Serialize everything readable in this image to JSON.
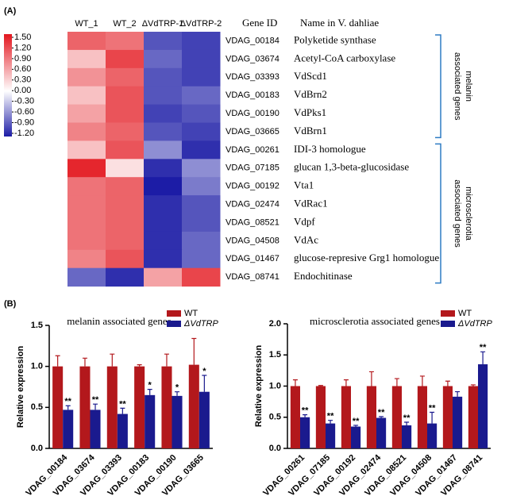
{
  "chart_data": [
    {
      "type": "heatmap",
      "panel_label": "(A)",
      "columns": [
        "WT_1",
        "WT_2",
        "ΔVdTRP-1",
        "ΔVdTRP-2"
      ],
      "id_header": "Gene ID",
      "name_header": "Name in V. dahliae",
      "zlim": [
        -1.2,
        1.5
      ],
      "zticks": [
        {
          "value": 1.5,
          "label": "1.50"
        },
        {
          "value": 1.2,
          "label": "1.20"
        },
        {
          "value": 0.9,
          "label": "0.90"
        },
        {
          "value": 0.6,
          "label": "0.60"
        },
        {
          "value": 0.3,
          "label": "0.30"
        },
        {
          "value": 0,
          "label": "0.00"
        },
        {
          "value": -0.3,
          "label": "-0.30"
        },
        {
          "value": -0.6,
          "label": "-0.60"
        },
        {
          "value": -0.9,
          "label": "-0.90"
        },
        {
          "value": -1.2,
          "label": "-1.20"
        }
      ],
      "colors": [
        "#1c1ca6",
        "#ffffff",
        "#e3161e"
      ],
      "groups": [
        {
          "label_lines": [
            "melanin",
            "associated genes"
          ],
          "rows": [
            {
              "gene_id": "VDAG_00184",
              "name": "Polyketide synthase",
              "values": [
                1.0,
                0.9,
                -0.9,
                -1.0
              ]
            },
            {
              "gene_id": "VDAG_03674",
              "name": "Acetyl-CoA  carboxylase",
              "values": [
                0.4,
                1.2,
                -0.8,
                -1.0
              ]
            },
            {
              "gene_id": "VDAG_03393",
              "name": "VdScd1",
              "values": [
                0.7,
                1.0,
                -0.9,
                -1.0
              ]
            },
            {
              "gene_id": "VDAG_00183",
              "name": "VdBrn2",
              "values": [
                0.4,
                1.1,
                -0.9,
                -0.8
              ]
            },
            {
              "gene_id": "VDAG_00190",
              "name": "VdPks1",
              "values": [
                0.6,
                1.1,
                -1.0,
                -0.9
              ]
            },
            {
              "gene_id": "VDAG_03665",
              "name": "VdBrn1",
              "values": [
                0.8,
                1.0,
                -0.9,
                -1.0
              ]
            }
          ]
        },
        {
          "label_lines": [
            "microsclerotia",
            "associated genes"
          ],
          "rows": [
            {
              "gene_id": "VDAG_00261",
              "name": "IDI-3 homologue",
              "values": [
                0.4,
                1.1,
                -0.6,
                -1.1
              ]
            },
            {
              "gene_id": "VDAG_07185",
              "name": "glucan 1,3-beta-glucosidase",
              "values": [
                1.4,
                0.2,
                -1.1,
                -0.6
              ]
            },
            {
              "gene_id": "VDAG_00192",
              "name": "Vta1",
              "values": [
                0.9,
                1.0,
                -1.2,
                -0.7
              ]
            },
            {
              "gene_id": "VDAG_02474",
              "name": "VdRac1",
              "values": [
                0.9,
                1.0,
                -1.1,
                -0.9
              ]
            },
            {
              "gene_id": "VDAG_08521",
              "name": "Vdpf",
              "values": [
                0.9,
                1.0,
                -1.1,
                -0.9
              ]
            },
            {
              "gene_id": "VDAG_04508",
              "name": "VdAc",
              "values": [
                0.9,
                1.0,
                -1.1,
                -0.8
              ]
            },
            {
              "gene_id": "VDAG_01467",
              "name": "glucose-represive Grg1 homologue",
              "values": [
                0.8,
                1.1,
                -1.1,
                -0.8
              ]
            },
            {
              "gene_id": "VDAG_08741",
              "name": "Endochitinase",
              "values": [
                -0.8,
                -1.1,
                0.6,
                1.2
              ]
            }
          ]
        }
      ]
    },
    {
      "type": "bar",
      "panel_label": "(B)",
      "title": "melanin associated genes",
      "ylabel": "Relative expression",
      "categories": [
        "VDAG_00184",
        "VDAG_03674",
        "VDAG_03393",
        "VDAG_00183",
        "VDAG_00190",
        "VDAG_03665"
      ],
      "ylim": [
        0,
        1.5
      ],
      "yticks": [
        {
          "value": 0,
          "label": "0.0"
        },
        {
          "value": 0.5,
          "label": "0.5"
        },
        {
          "value": 1,
          "label": "1.0"
        },
        {
          "value": 1.5,
          "label": "1.5"
        }
      ],
      "series": [
        {
          "name": "WT",
          "color": "#b3181c",
          "values": [
            1.0,
            1.0,
            1.0,
            1.0,
            1.0,
            1.02
          ],
          "errors": [
            0.13,
            0.1,
            0.15,
            0.02,
            0.15,
            0.32
          ]
        },
        {
          "name": "ΔVdTRP",
          "color": "#1a1a8e",
          "values": [
            0.47,
            0.47,
            0.42,
            0.65,
            0.64,
            0.69
          ],
          "errors": [
            0.05,
            0.07,
            0.07,
            0.07,
            0.05,
            0.2
          ],
          "significance": [
            "**",
            "**",
            "**",
            "*",
            "*",
            "*"
          ]
        }
      ]
    },
    {
      "type": "bar",
      "title": "microsclerotia associated genes",
      "ylabel": "Relative expression",
      "categories": [
        "VDAG_00261",
        "VDAG_07185",
        "VDAG_00192",
        "VDAG_02474",
        "VDAG_08521",
        "VDAG_04508",
        "VDAG_01467",
        "VDAG_08741"
      ],
      "ylim": [
        0,
        2
      ],
      "yticks": [
        {
          "value": 0,
          "label": "0.0"
        },
        {
          "value": 0.5,
          "label": "0.5"
        },
        {
          "value": 1,
          "label": "1.0"
        },
        {
          "value": 1.5,
          "label": "1.5"
        },
        {
          "value": 2,
          "label": "2.0"
        }
      ],
      "series": [
        {
          "name": "WT",
          "color": "#b3181c",
          "values": [
            1.0,
            1.0,
            1.0,
            1.0,
            1.0,
            1.0,
            1.0,
            1.0
          ],
          "errors": [
            0.1,
            0.01,
            0.1,
            0.23,
            0.12,
            0.16,
            0.08,
            0.02
          ]
        },
        {
          "name": "ΔVdTRP",
          "color": "#1a1a8e",
          "values": [
            0.5,
            0.4,
            0.35,
            0.49,
            0.37,
            0.4,
            0.83,
            1.35
          ],
          "errors": [
            0.04,
            0.05,
            0.02,
            0.02,
            0.05,
            0.18,
            0.08,
            0.2
          ],
          "significance": [
            "**",
            "**",
            "**",
            "**",
            "**",
            "**",
            null,
            "**"
          ]
        }
      ]
    }
  ]
}
